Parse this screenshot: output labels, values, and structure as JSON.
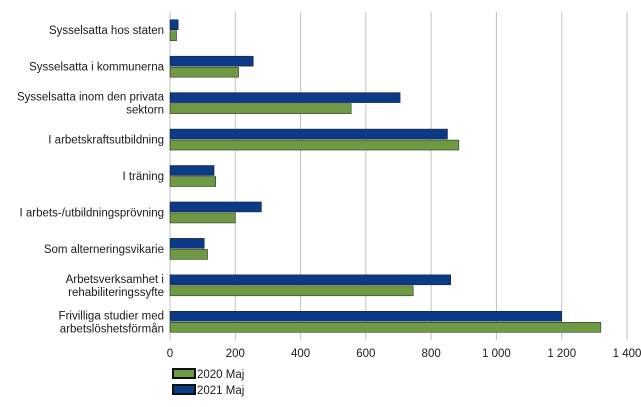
{
  "chart_data": {
    "type": "bar",
    "orientation": "horizontal",
    "title": "",
    "xlabel": "",
    "ylabel": "",
    "xlim": [
      0,
      1400
    ],
    "x_ticks": [
      0,
      200,
      400,
      600,
      800,
      1000,
      1200,
      1400
    ],
    "x_tick_labels": [
      "0",
      "200",
      "400",
      "600",
      "800",
      "1 000",
      "1 200",
      "1 400"
    ],
    "grid": "vertical",
    "legend_position": "bottom-left",
    "categories": [
      [
        "Sysselsatta hos staten"
      ],
      [
        "Sysselsatta i kommunerna"
      ],
      [
        "Sysselsatta inom den privata",
        "sektorn"
      ],
      [
        "I arbetskraftsutbildning"
      ],
      [
        "I träning"
      ],
      [
        "I arbets-/utbildningsprövning"
      ],
      [
        "Som alterneringsvikarie"
      ],
      [
        "Arbetsverksamhet i",
        "rehabiliteringssyfte"
      ],
      [
        "Frivilliga studier med",
        "arbetslöshetsförmån"
      ]
    ],
    "series": [
      {
        "name": "2021 Maj",
        "color": "#0b3a86",
        "values": [
          25,
          255,
          705,
          850,
          135,
          280,
          105,
          860,
          1200
        ]
      },
      {
        "name": "2020 Maj",
        "color": "#6e9a44",
        "values": [
          20,
          210,
          555,
          885,
          140,
          200,
          115,
          745,
          1320
        ]
      }
    ],
    "legend_order": [
      "2020 Maj",
      "2021 Maj"
    ]
  }
}
